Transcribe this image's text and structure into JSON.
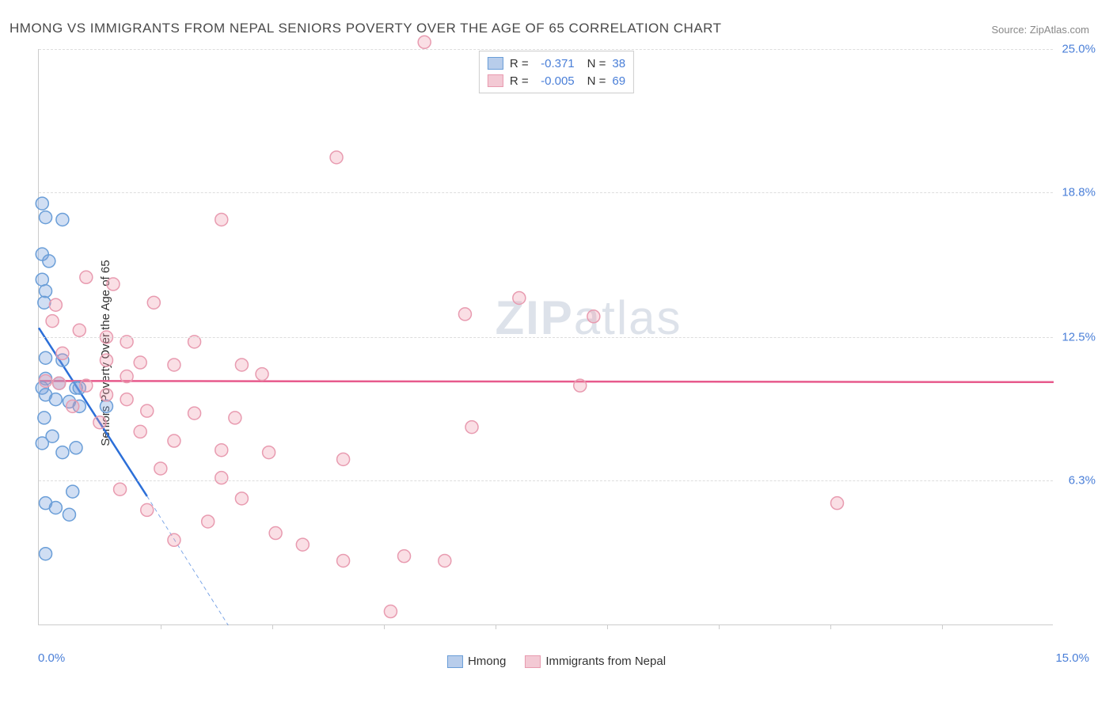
{
  "title": "HMONG VS IMMIGRANTS FROM NEPAL SENIORS POVERTY OVER THE AGE OF 65 CORRELATION CHART",
  "source": "Source: ZipAtlas.com",
  "ylabel": "Seniors Poverty Over the Age of 65",
  "watermark_bold": "ZIP",
  "watermark_rest": "atlas",
  "chart": {
    "type": "scatter-with-regression",
    "background_color": "#ffffff",
    "grid_color": "#dddddd",
    "axis_color": "#cccccc",
    "text_color": "#4a4a4a",
    "tick_label_color": "#4a7fd8",
    "xlim": [
      0,
      15
    ],
    "ylim": [
      0,
      25
    ],
    "ytick_values": [
      6.3,
      12.5,
      18.8,
      25.0
    ],
    "ytick_labels": [
      "6.3%",
      "12.5%",
      "18.8%",
      "25.0%"
    ],
    "xtick_positions": [
      0.12,
      0.23,
      0.34,
      0.45,
      0.56,
      0.67,
      0.78,
      0.89
    ],
    "x_origin_label": "0.0%",
    "x_max_label": "15.0%",
    "marker_radius": 8,
    "marker_stroke_width": 1.5,
    "regression_line_width": 2.5,
    "dashed_line_dash": "5,4"
  },
  "series": [
    {
      "name": "Hmong",
      "fill_color": "rgba(120,160,220,0.35)",
      "stroke_color": "#6a9ed8",
      "swatch_fill": "#b8cdeb",
      "swatch_border": "#6a9ed8",
      "regression_color": "#2c6fd8",
      "R": "-0.371",
      "N": "38",
      "regression_start": [
        0,
        12.9
      ],
      "regression_solid_end": [
        1.6,
        5.6
      ],
      "regression_dashed_end": [
        2.8,
        0
      ],
      "points": [
        [
          0.05,
          18.3
        ],
        [
          0.1,
          17.7
        ],
        [
          0.35,
          17.6
        ],
        [
          0.05,
          16.1
        ],
        [
          0.15,
          15.8
        ],
        [
          0.05,
          15.0
        ],
        [
          0.1,
          14.5
        ],
        [
          0.08,
          14.0
        ],
        [
          0.1,
          11.6
        ],
        [
          0.35,
          11.5
        ],
        [
          0.1,
          10.7
        ],
        [
          0.3,
          10.5
        ],
        [
          0.05,
          10.3
        ],
        [
          0.55,
          10.3
        ],
        [
          0.6,
          10.3
        ],
        [
          0.1,
          10.0
        ],
        [
          0.25,
          9.8
        ],
        [
          0.45,
          9.7
        ],
        [
          0.6,
          9.5
        ],
        [
          1.0,
          9.5
        ],
        [
          0.08,
          9.0
        ],
        [
          0.2,
          8.2
        ],
        [
          0.05,
          7.9
        ],
        [
          0.55,
          7.7
        ],
        [
          0.35,
          7.5
        ],
        [
          0.5,
          5.8
        ],
        [
          0.1,
          5.3
        ],
        [
          0.25,
          5.1
        ],
        [
          0.45,
          4.8
        ],
        [
          0.1,
          3.1
        ]
      ]
    },
    {
      "name": "Immigrants from Nepal",
      "fill_color": "rgba(240,150,170,0.3)",
      "stroke_color": "#e89bb0",
      "swatch_fill": "#f3c9d4",
      "swatch_border": "#e89bb0",
      "regression_color": "#e75a8c",
      "R": "-0.005",
      "N": "69",
      "regression_start": [
        0,
        10.6
      ],
      "regression_solid_end": [
        15,
        10.55
      ],
      "points": [
        [
          5.7,
          25.3
        ],
        [
          4.4,
          20.3
        ],
        [
          2.7,
          17.6
        ],
        [
          0.7,
          15.1
        ],
        [
          1.1,
          14.8
        ],
        [
          7.1,
          14.2
        ],
        [
          1.7,
          14.0
        ],
        [
          0.25,
          13.9
        ],
        [
          6.3,
          13.5
        ],
        [
          8.2,
          13.4
        ],
        [
          0.2,
          13.2
        ],
        [
          0.6,
          12.8
        ],
        [
          1.0,
          12.5
        ],
        [
          1.3,
          12.3
        ],
        [
          2.3,
          12.3
        ],
        [
          0.35,
          11.8
        ],
        [
          1.0,
          11.5
        ],
        [
          1.5,
          11.4
        ],
        [
          2.0,
          11.3
        ],
        [
          3.0,
          11.3
        ],
        [
          3.3,
          10.9
        ],
        [
          1.3,
          10.8
        ],
        [
          0.1,
          10.6
        ],
        [
          0.3,
          10.5
        ],
        [
          0.7,
          10.4
        ],
        [
          8.0,
          10.4
        ],
        [
          1.0,
          10.0
        ],
        [
          1.3,
          9.8
        ],
        [
          0.5,
          9.5
        ],
        [
          1.6,
          9.3
        ],
        [
          2.3,
          9.2
        ],
        [
          2.9,
          9.0
        ],
        [
          0.9,
          8.8
        ],
        [
          6.4,
          8.6
        ],
        [
          1.5,
          8.4
        ],
        [
          2.0,
          8.0
        ],
        [
          2.7,
          7.6
        ],
        [
          3.4,
          7.5
        ],
        [
          4.5,
          7.2
        ],
        [
          1.8,
          6.8
        ],
        [
          2.7,
          6.4
        ],
        [
          1.2,
          5.9
        ],
        [
          3.0,
          5.5
        ],
        [
          11.8,
          5.3
        ],
        [
          1.6,
          5.0
        ],
        [
          2.5,
          4.5
        ],
        [
          3.5,
          4.0
        ],
        [
          2.0,
          3.7
        ],
        [
          3.9,
          3.5
        ],
        [
          5.4,
          3.0
        ],
        [
          4.5,
          2.8
        ],
        [
          6.0,
          2.8
        ],
        [
          5.2,
          0.6
        ]
      ]
    }
  ],
  "legend_top": {
    "R_label": "R =",
    "N_label": "N ="
  },
  "legend_bottom": {
    "items": [
      "Hmong",
      "Immigrants from Nepal"
    ]
  }
}
